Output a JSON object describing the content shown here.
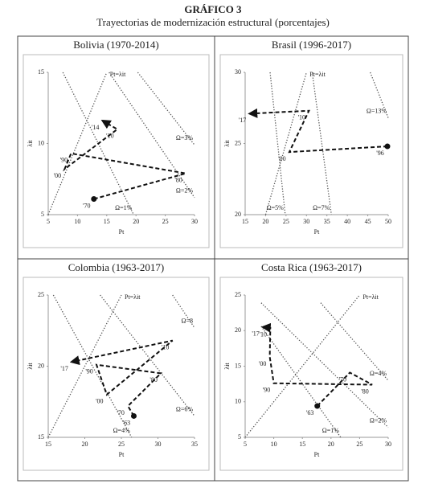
{
  "figure": {
    "title": "GRÁFICO 3",
    "subtitle": "Trayectorias de modernización estructural (porcentajes)"
  },
  "chart_data": [
    {
      "type": "line",
      "title": "Bolivia (1970-2014)",
      "xlabel": "Pt",
      "ylabel": "λit",
      "color": "#111",
      "xlim": [
        5,
        30
      ],
      "ylim": [
        5,
        15
      ],
      "xticks": [
        5,
        10,
        15,
        20,
        25,
        30
      ],
      "yticks": [
        5,
        10,
        15
      ],
      "trajectory": {
        "x": [
          12.8,
          28.5,
          8.9,
          7.8,
          16.8,
          14.3
        ],
        "y": [
          6.1,
          7.9,
          9.3,
          8.2,
          11.0,
          11.6
        ],
        "labels": [
          "'70",
          "'80",
          "'90",
          "'00",
          "'10",
          "'14"
        ]
      },
      "reference_lines": [
        {
          "name": "Pt=λit",
          "x": [
            5,
            15
          ],
          "y": [
            5,
            15
          ]
        },
        {
          "name": "Ω=1%",
          "x": [
            7.5,
            19.6
          ],
          "y": [
            15,
            5
          ]
        },
        {
          "name": "Ω=2%",
          "x": [
            15.4,
            30
          ],
          "y": [
            15,
            6.2
          ]
        },
        {
          "name": "Ω=3%",
          "x": [
            20.3,
            30
          ],
          "y": [
            15,
            9.9
          ]
        }
      ]
    },
    {
      "type": "line",
      "title": "Brasil (1996-2017)",
      "xlabel": "Pt",
      "ylabel": "λit",
      "color": "#111",
      "xlim": [
        15,
        50
      ],
      "ylim": [
        20,
        30
      ],
      "xticks": [
        15,
        20,
        25,
        30,
        35,
        40,
        45,
        50
      ],
      "yticks": [
        20,
        25,
        30
      ],
      "trajectory": {
        "x": [
          49.8,
          25.8,
          30.6,
          16.1
        ],
        "y": [
          24.8,
          24.4,
          27.3,
          27.1
        ],
        "labels": [
          "'96",
          "'00",
          "'10",
          "'17"
        ]
      },
      "reference_lines": [
        {
          "name": "Pt=λit",
          "x": [
            20,
            30
          ],
          "y": [
            20,
            30
          ]
        },
        {
          "name": "Ω=5%",
          "x": [
            21.1,
            24.8
          ],
          "y": [
            30,
            20
          ]
        },
        {
          "name": "Ω=7%",
          "x": [
            31.4,
            36.1
          ],
          "y": [
            30,
            20
          ]
        },
        {
          "name": "Ω=13%",
          "x": [
            45.6,
            50
          ],
          "y": [
            30,
            26.8
          ]
        }
      ]
    },
    {
      "type": "line",
      "title": "Colombia (1963-2017)",
      "xlabel": "Pt",
      "ylabel": "λit",
      "color": "#111",
      "xlim": [
        15,
        35
      ],
      "ylim": [
        15,
        25
      ],
      "xticks": [
        15,
        20,
        25,
        30,
        35
      ],
      "yticks": [
        15,
        20,
        25
      ],
      "trajectory": {
        "x": [
          26.7,
          25.9,
          30.4,
          21.6,
          23.0,
          32.0,
          18.2
        ],
        "y": [
          16.5,
          17.2,
          19.5,
          20.1,
          18.0,
          21.8,
          20.3
        ],
        "labels": [
          "'63",
          "'70",
          "'80",
          "'90",
          "'00",
          "'10",
          "'17"
        ]
      },
      "reference_lines": [
        {
          "name": "Pt=λit",
          "x": [
            15,
            25
          ],
          "y": [
            15,
            25
          ]
        },
        {
          "name": "Ω=4%",
          "x": [
            15.7,
            26.4
          ],
          "y": [
            25,
            15
          ]
        },
        {
          "name": "Ω=6%",
          "x": [
            22.1,
            35
          ],
          "y": [
            25,
            16.5
          ]
        },
        {
          "name": "Ω=8",
          "x": [
            32,
            35
          ],
          "y": [
            25,
            22.7
          ]
        }
      ]
    },
    {
      "type": "line",
      "title": "Costa Rica (1963-2017)",
      "xlabel": "Pt",
      "ylabel": "λit",
      "color": "#111",
      "xlim": [
        5,
        30
      ],
      "ylim": [
        5,
        25
      ],
      "xticks": [
        5,
        10,
        15,
        20,
        25,
        30
      ],
      "yticks": [
        5,
        10,
        15,
        20,
        25
      ],
      "trajectory": {
        "x": [
          17.6,
          23.3,
          27.2,
          10.0,
          9.3,
          9.4,
          8.1
        ],
        "y": [
          9.4,
          14.1,
          12.4,
          12.6,
          16.3,
          20.4,
          20.5
        ],
        "labels": [
          "'63",
          "'70",
          "'80",
          "'90",
          "'00",
          "'10",
          "'17"
        ]
      },
      "reference_lines": [
        {
          "name": "Pt=λit",
          "x": [
            5,
            25
          ],
          "y": [
            5,
            25
          ]
        },
        {
          "name": "Ω=1%",
          "x": [
            7.8,
            21.7
          ],
          "y": [
            20.6,
            5
          ]
        },
        {
          "name": "Ω=2%",
          "x": [
            7.8,
            30
          ],
          "y": [
            23.9,
            6.4
          ]
        },
        {
          "name": "Ω=4%",
          "x": [
            18.2,
            30
          ],
          "y": [
            23.9,
            13
          ]
        }
      ]
    }
  ]
}
